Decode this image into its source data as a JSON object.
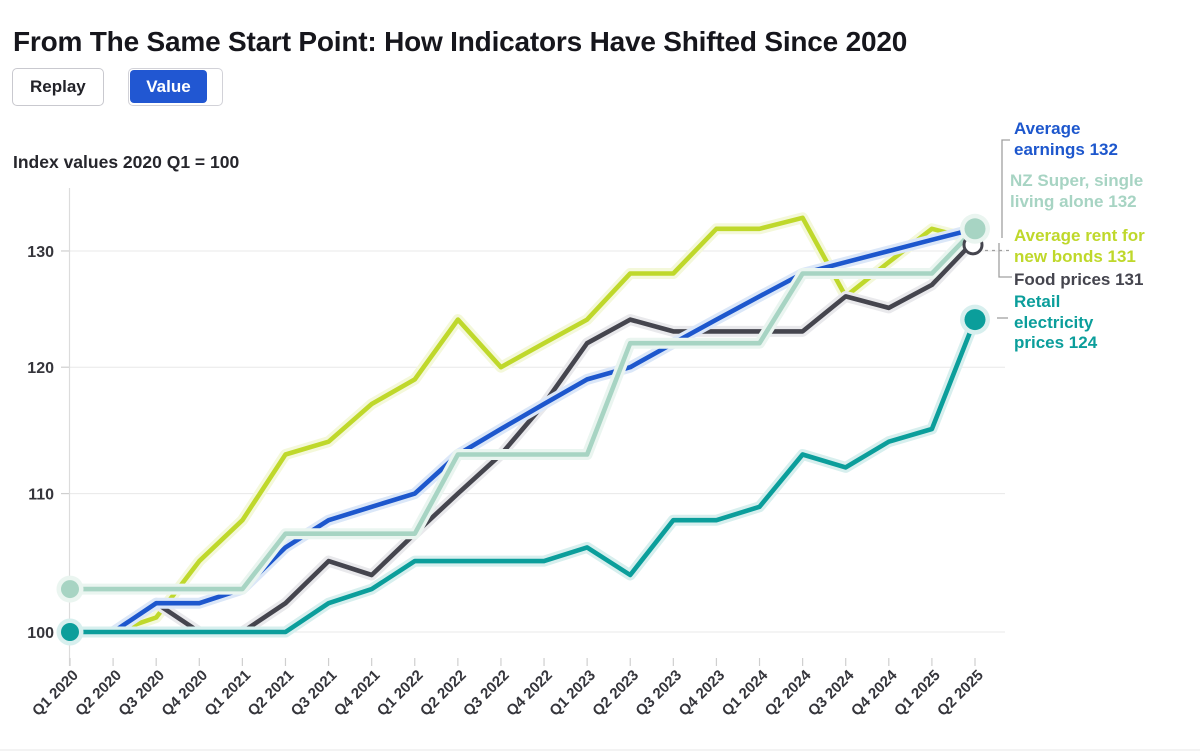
{
  "header": {
    "title": "From The Same Start Point: How Indicators Have Shifted Since 2020",
    "replay_label": "Replay",
    "value_label": "Value",
    "value_button_color": "#2157d2"
  },
  "chart_data": {
    "type": "line",
    "title": "From The Same Start Point: How Indicators Have Shifted Since 2020",
    "axis_note": "Index values 2020 Q1 = 100",
    "x_labels": [
      "Q1 2020",
      "Q2 2020",
      "Q3 2020",
      "Q4 2020",
      "Q1 2021",
      "Q2 2021",
      "Q3 2021",
      "Q4 2021",
      "Q1 2022",
      "Q2 2022",
      "Q3 2022",
      "Q4 2022",
      "Q1 2023",
      "Q2 2023",
      "Q3 2023",
      "Q4 2023",
      "Q1 2024",
      "Q2 2024",
      "Q3 2024",
      "Q4 2024",
      "Q1 2025",
      "Q2 2025"
    ],
    "yticks": [
      100,
      110,
      120,
      130
    ],
    "ylim": [
      98,
      134
    ],
    "y_scale": "log",
    "grid": "horizontal",
    "legend_position": "end-labels-right",
    "series": [
      {
        "name": "Average earnings",
        "final_value": 132,
        "color": "#1d57cd",
        "halo": "#dbe7f8",
        "label_lines": [
          "Average",
          "earnings 132"
        ],
        "values": [
          100,
          100,
          102,
          102,
          103,
          106,
          108,
          109,
          110,
          113,
          115,
          117,
          119,
          120,
          122,
          124,
          126,
          128,
          129,
          130,
          131,
          132
        ]
      },
      {
        "name": "NZ Super, single living alone",
        "final_value": 132,
        "color": "#a7d4c3",
        "halo": "#eaf5f0",
        "label_lines": [
          "NZ Super, single",
          "living alone 132"
        ],
        "values": [
          103,
          103,
          103,
          103,
          103,
          107,
          107,
          107,
          107,
          113,
          113,
          113,
          113,
          122,
          122,
          122,
          122,
          128,
          128,
          128,
          128,
          132
        ]
      },
      {
        "name": "Average rent for new bonds",
        "final_value": 131,
        "color": "#bfd82b",
        "halo": "#f4f8da",
        "label_lines": [
          "Average rent for",
          "new bonds 131"
        ],
        "values": [
          100,
          100,
          101,
          105,
          108,
          113,
          114,
          117,
          119,
          124,
          120,
          122,
          124,
          128,
          128,
          132,
          132,
          133,
          126,
          129,
          132,
          131
        ]
      },
      {
        "name": "Food prices",
        "final_value": 131,
        "color": "#45454e",
        "halo": "#e9e9ec",
        "label_lines": [
          "Food prices 131"
        ],
        "values": [
          100,
          100,
          102,
          100,
          100,
          102,
          105,
          104,
          107,
          110,
          113,
          117,
          122,
          124,
          123,
          123,
          123,
          123,
          126,
          125,
          127,
          131
        ]
      },
      {
        "name": "Retail electricity prices",
        "final_value": 124,
        "color": "#0b9e9b",
        "halo": "#d7efee",
        "label_lines": [
          "Retail",
          "electricity",
          "prices 124"
        ],
        "values": [
          100,
          100,
          100,
          100,
          100,
          100,
          102,
          103,
          105,
          105,
          105,
          105,
          106,
          104,
          108,
          108,
          109,
          113,
          112,
          114,
          115,
          124
        ]
      }
    ],
    "markers": {
      "start_dots": [
        {
          "series": 1,
          "value": 103
        },
        {
          "series": 4,
          "value": 100
        }
      ],
      "end_dots": [
        {
          "series": 3,
          "value": 131,
          "fill": "#ffffff",
          "ring": true
        },
        {
          "series": 1,
          "value": 132
        },
        {
          "series": 4,
          "value": 124
        }
      ]
    }
  }
}
